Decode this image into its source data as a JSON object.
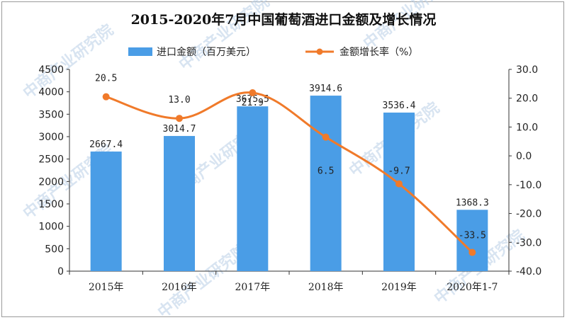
{
  "watermark": "中商产业研究院",
  "chart_data": {
    "type": "bar+line",
    "title": "2015-2020年7月中国葡萄酒进口金额及增长情况",
    "categories": [
      "2015年",
      "2016年",
      "2017年",
      "2018年",
      "2019年",
      "2020年1-7"
    ],
    "series": [
      {
        "name": "进口金额（百万美元）",
        "type": "bar",
        "axis": "left",
        "color": "#4a9de6",
        "values": [
          2667.4,
          3014.7,
          3675.5,
          3914.6,
          3536.4,
          1368.3
        ],
        "labels": [
          "2667.4",
          "3014.7",
          "3675.5",
          "3914.6",
          "3536.4",
          "1368.3"
        ]
      },
      {
        "name": "金额增长率（%）",
        "type": "line",
        "axis": "right",
        "color": "#f07a2a",
        "values": [
          20.5,
          13.0,
          21.9,
          6.5,
          -9.7,
          -33.5
        ],
        "labels": [
          "20.5",
          "13.0",
          "21.9",
          "6.5",
          "-9.7",
          "-33.5"
        ]
      }
    ],
    "y_left": {
      "min": 0,
      "max": 4500,
      "ticks": [
        "0",
        "500",
        "1000",
        "1500",
        "2000",
        "2500",
        "3000",
        "3500",
        "4000",
        "4500"
      ]
    },
    "y_right": {
      "min": -40,
      "max": 30,
      "ticks": [
        "30.0",
        "20.0",
        "10.0",
        "0.0",
        "-10.0",
        "-20.0",
        "-30.0",
        "-40.0"
      ]
    },
    "legend_position": "top",
    "grid": false
  }
}
